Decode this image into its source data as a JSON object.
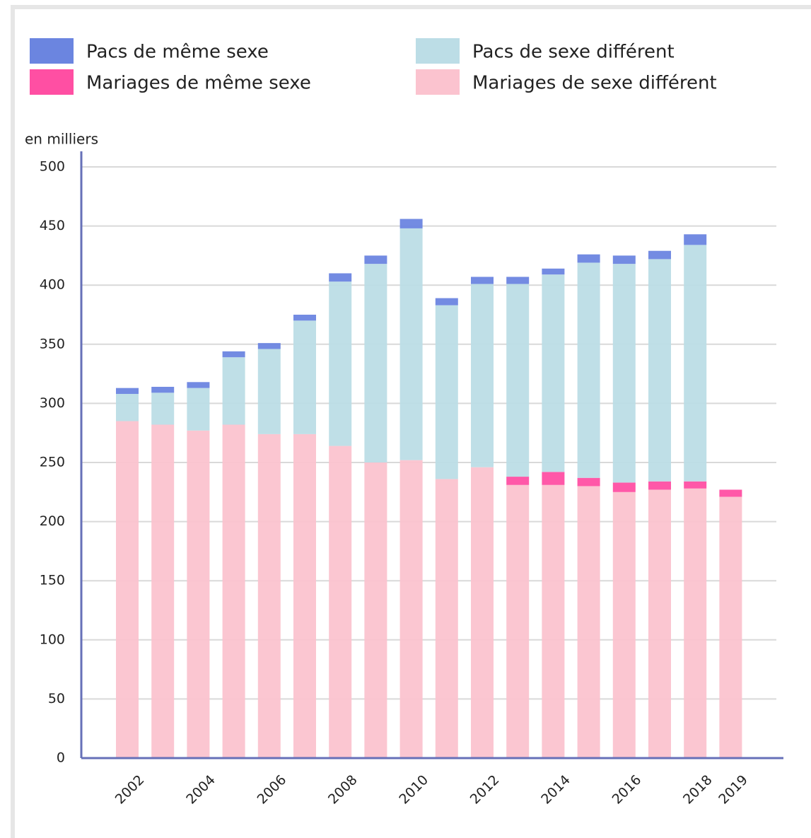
{
  "chart_data": {
    "type": "stacked_bar",
    "y_label": "en milliers",
    "categories": [
      "2002",
      null,
      "2004",
      null,
      "2006",
      null,
      "2008",
      null,
      "2010",
      null,
      "2012",
      null,
      "2014",
      null,
      "2016",
      null,
      "2018",
      "2019"
    ],
    "series": [
      {
        "name": "Pacs de même sexe",
        "color": "#6b85e0",
        "values": [
          5,
          5,
          5,
          5,
          5,
          5,
          7,
          7,
          8,
          6,
          6,
          6,
          5,
          7,
          7,
          7,
          9,
          null
        ]
      },
      {
        "name": "Pacs de sexe différent",
        "color": "#bcdde6",
        "values": [
          23,
          27,
          36,
          57,
          72,
          96,
          139,
          168,
          196,
          147,
          155,
          163,
          167,
          182,
          185,
          188,
          200,
          null
        ]
      },
      {
        "name": "Mariages de même sexe",
        "color": "#ff4fa3",
        "values": [
          null,
          null,
          null,
          null,
          null,
          null,
          null,
          null,
          null,
          null,
          null,
          7,
          11,
          7,
          8,
          7,
          6,
          6
        ]
      },
      {
        "name": "Mariages de sexe différent",
        "color": "#fbc3cf",
        "values": [
          285,
          282,
          277,
          282,
          274,
          274,
          264,
          250,
          252,
          236,
          246,
          231,
          231,
          230,
          225,
          227,
          228,
          221
        ]
      }
    ],
    "ylim": [
      0,
      500
    ],
    "yticks": [
      0,
      50,
      100,
      150,
      200,
      250,
      300,
      350,
      400,
      450,
      500
    ],
    "grid": true
  }
}
